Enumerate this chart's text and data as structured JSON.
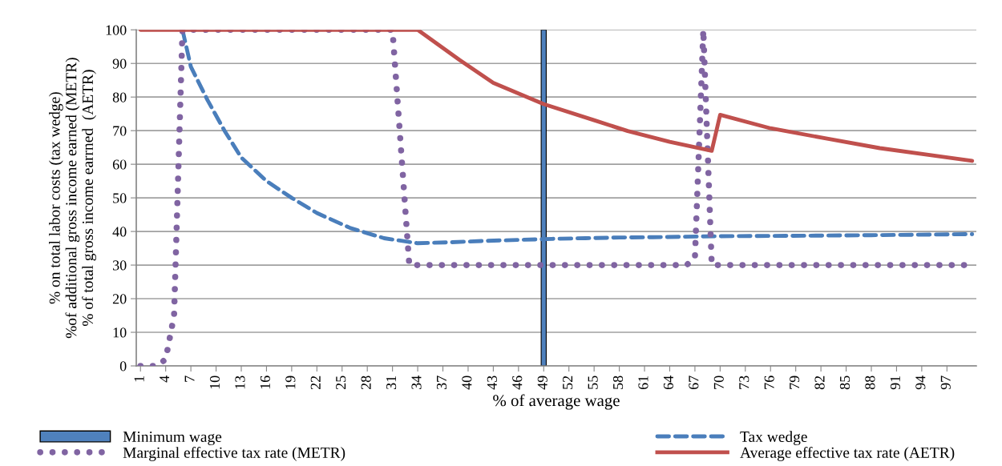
{
  "chart_data": {
    "type": "line",
    "xlabel": "% of average wage",
    "ylabel": "% on total labor costs (tax wedge)\n%of additional gross income earned (METR)\n% of total gross income earrned  (AETR)",
    "xlim": [
      0.5,
      100.5
    ],
    "xticks": [
      1,
      4,
      7,
      10,
      13,
      16,
      19,
      22,
      25,
      28,
      31,
      34,
      37,
      40,
      43,
      46,
      49,
      52,
      55,
      58,
      61,
      64,
      67,
      70,
      73,
      76,
      79,
      82,
      85,
      88,
      91,
      94,
      97
    ],
    "ylim": [
      0,
      100
    ],
    "yticks": [
      0,
      10,
      20,
      30,
      40,
      50,
      60,
      70,
      80,
      90,
      100
    ],
    "grid": "y",
    "legend": "bottom",
    "marker": "none",
    "series": [
      {
        "name": "Minimum wage",
        "type": "bar",
        "color": "#4f81bd",
        "x": [
          49
        ],
        "values": [
          100
        ]
      },
      {
        "name": "Tax wedge",
        "line_style": "dashed",
        "color": "#4a7ebb",
        "x": [
          6,
          7,
          9,
          11,
          13,
          16,
          19,
          22,
          26,
          30,
          34,
          38,
          42,
          46,
          50,
          54,
          58,
          62,
          70,
          78,
          88,
          100
        ],
        "values": [
          100,
          89,
          79,
          70,
          62,
          55,
          50,
          45.5,
          41,
          38,
          36.5,
          36.8,
          37.2,
          37.5,
          37.8,
          38,
          38.2,
          38.3,
          38.6,
          38.7,
          38.9,
          39.2
        ]
      },
      {
        "name": "Marginal effective tax rate (METR)",
        "line_style": "dotted",
        "color": "#8064a2",
        "x": [
          1,
          3,
          4,
          5,
          6,
          31,
          32,
          33,
          66,
          67,
          68,
          69,
          100
        ],
        "values": [
          0,
          0,
          2,
          15,
          100,
          100,
          65,
          30,
          30,
          32,
          100,
          30,
          30
        ]
      },
      {
        "name": "Average effective tax rate (AETR)",
        "line_style": "solid",
        "color": "#c0504d",
        "x": [
          1,
          34,
          39,
          43,
          49,
          55,
          59,
          64,
          69,
          70,
          76,
          83,
          89,
          96,
          100
        ],
        "values": [
          100,
          100,
          91,
          84.2,
          77.9,
          73.1,
          69.9,
          66.7,
          64,
          74.7,
          70.7,
          67.5,
          64.8,
          62.4,
          61
        ]
      }
    ]
  }
}
